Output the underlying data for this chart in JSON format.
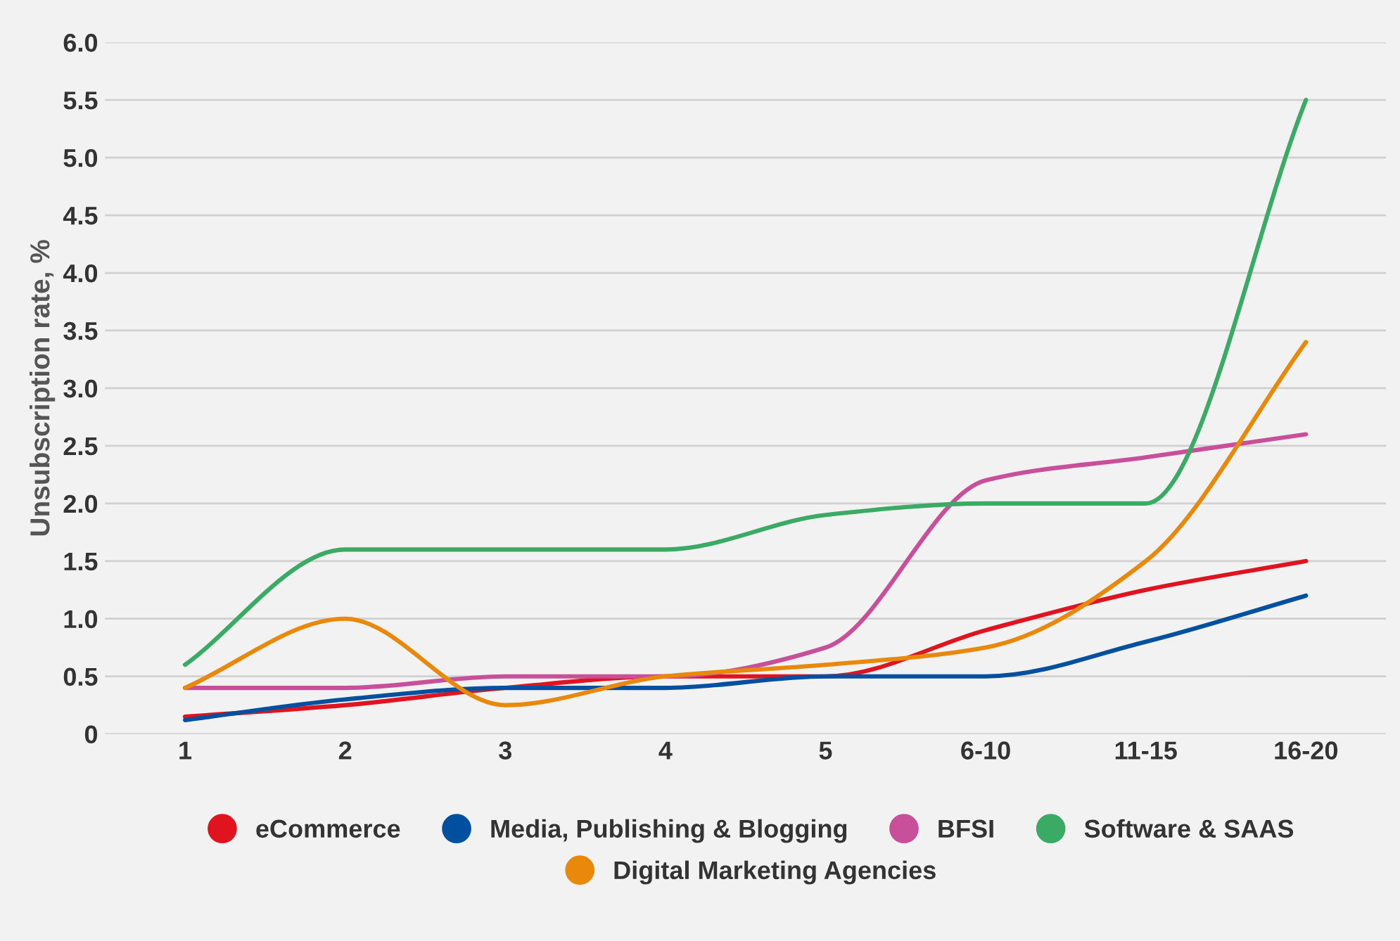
{
  "chart_data": {
    "type": "line",
    "ylabel": "Unsubscription rate, %",
    "categories": [
      "1",
      "2",
      "3",
      "4",
      "5",
      "6-10",
      "11-15",
      "16-20"
    ],
    "series": [
      {
        "name": "eCommerce",
        "color": "#e0141e",
        "values": [
          0.15,
          0.25,
          0.4,
          0.5,
          0.5,
          0.9,
          1.25,
          1.5
        ]
      },
      {
        "name": "Media, Publishing & Blogging",
        "color": "#0050a0",
        "values": [
          0.12,
          0.3,
          0.4,
          0.4,
          0.5,
          0.5,
          0.8,
          1.2
        ]
      },
      {
        "name": "BFSI",
        "color": "#c8509a",
        "values": [
          0.4,
          0.4,
          0.5,
          0.5,
          0.75,
          2.2,
          2.4,
          2.6
        ]
      },
      {
        "name": "Software & SAAS",
        "color": "#3aaa64",
        "values": [
          0.6,
          1.6,
          1.6,
          1.6,
          1.9,
          2.0,
          2.0,
          5.5
        ]
      },
      {
        "name": "Digital Marketing Agencies",
        "color": "#e8890c",
        "values": [
          0.4,
          1.0,
          0.25,
          0.5,
          0.6,
          0.75,
          1.5,
          3.4
        ]
      }
    ],
    "ylim": [
      0,
      6.0
    ],
    "yticks": [
      0,
      {
        "value": 0.5,
        "label": "0.5"
      },
      {
        "value": 1,
        "label": "1.0"
      },
      {
        "value": 1.5,
        "label": "1.5"
      },
      {
        "value": 2,
        "label": "2.0"
      },
      {
        "value": 2.5,
        "label": "2.5"
      },
      {
        "value": 3,
        "label": "3.0"
      },
      {
        "value": 3.5,
        "label": "3.5"
      },
      {
        "value": 4,
        "label": "4.0"
      },
      {
        "value": 4.5,
        "label": "4.5"
      },
      {
        "value": 5,
        "label": "5.0"
      },
      {
        "value": 5.5,
        "label": "5.5"
      },
      {
        "value": 6,
        "label": "6.0"
      }
    ],
    "grid": "y",
    "legend": "bottom",
    "line_style": "solid"
  }
}
